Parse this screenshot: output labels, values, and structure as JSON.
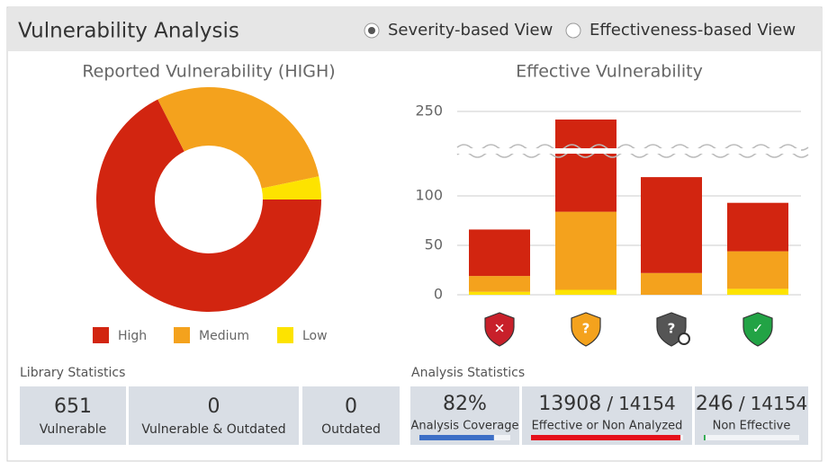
{
  "header": {
    "title": "Vulnerability Analysis",
    "view_options": {
      "options": [
        "Severity-based View",
        "Effectiveness-based View"
      ],
      "selected": 0
    }
  },
  "chart_data": [
    {
      "type": "pie",
      "title": "Reported Vulnerability (HIGH)",
      "categories": [
        "High",
        "Medium",
        "Low"
      ],
      "values": [
        67.5,
        29.2,
        3.3
      ],
      "colors": [
        "#d22510",
        "#f4a21d",
        "#fde300"
      ],
      "donut": true,
      "legend": "bottom"
    },
    {
      "type": "bar",
      "stacked": true,
      "title": "Effective Vulnerability",
      "categories": [
        null,
        null,
        null,
        null
      ],
      "series": [
        {
          "name": "Low",
          "color": "#fde300",
          "values": [
            3,
            5,
            0,
            6
          ]
        },
        {
          "name": "Medium",
          "color": "#f4a21d",
          "values": [
            16,
            79,
            22,
            38
          ]
        },
        {
          "name": "High",
          "color": "#d22510",
          "values": [
            47,
            161,
            97,
            49
          ]
        }
      ],
      "ylim": [
        0,
        250
      ],
      "yticks": [
        0,
        50,
        100,
        250
      ],
      "y_break": [
        130,
        230
      ],
      "grid": true
    }
  ],
  "library_statistics": {
    "title": "Library Statistics",
    "items": [
      {
        "value": 651,
        "label": "Vulnerable"
      },
      {
        "value": 0,
        "label": "Vulnerable & Outdated"
      },
      {
        "value": 0,
        "label": "Outdated"
      }
    ]
  },
  "analysis_statistics": {
    "title": "Analysis Statistics",
    "items": [
      {
        "value": 82,
        "value_label": "82%",
        "label": "Analysis Coverage",
        "color": "#3d6fc6"
      },
      {
        "value": 13908,
        "separator": "/",
        "total": 14154,
        "label": "Effective or Non Analyzed",
        "color": "#e5101b"
      },
      {
        "value": 246,
        "separator": "/",
        "total": 14154,
        "label": "Non Effective",
        "color": "#2aa84a"
      }
    ]
  }
}
